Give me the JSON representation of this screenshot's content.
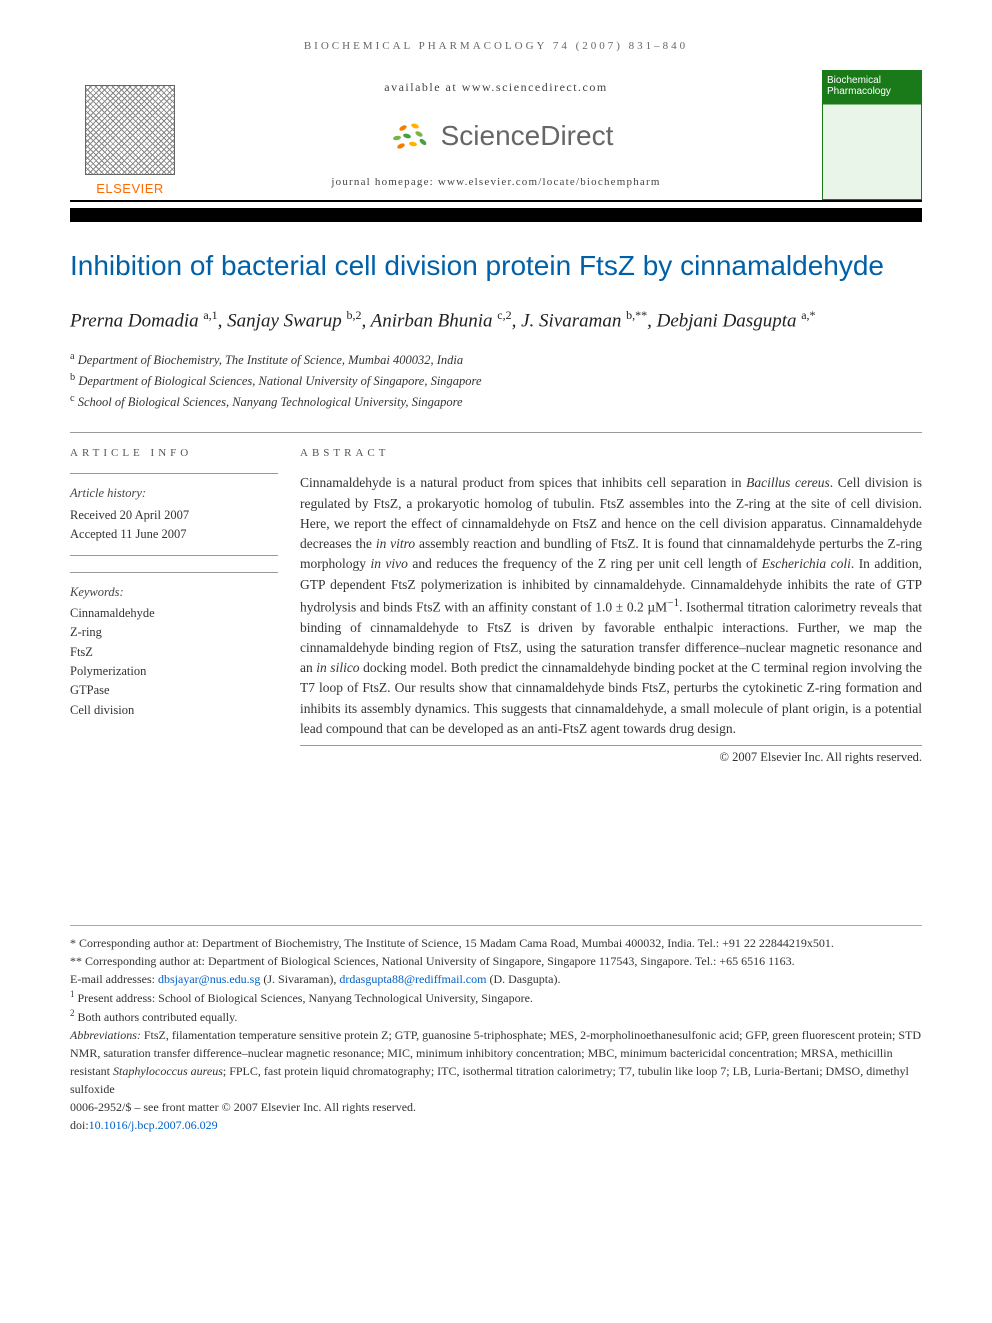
{
  "running_head": "BIOCHEMICAL PHARMACOLOGY 74 (2007) 831–840",
  "masthead": {
    "publisher": "ELSEVIER",
    "available_at": "available at www.sciencedirect.com",
    "sd_name": "ScienceDirect",
    "journal_homepage": "journal homepage: www.elsevier.com/locate/biochempharm",
    "cover_title": "Biochemical Pharmacology",
    "sd_burst_colors": [
      "#f57c00",
      "#ffb300",
      "#7cb342",
      "#43a047"
    ]
  },
  "article": {
    "title": "Inhibition of bacterial cell division protein FtsZ by cinnamaldehyde",
    "title_color": "#0060a8",
    "authors_html": "Prerna Domadia <sup>a,1</sup>, Sanjay Swarup <sup>b,2</sup>, Anirban Bhunia <sup>c,2</sup>, J. Sivaraman <sup>b,**</sup>, Debjani Dasgupta <sup>a,*</sup>",
    "affiliations": [
      {
        "sup": "a",
        "text": "Department of Biochemistry, The Institute of Science, Mumbai 400032, India"
      },
      {
        "sup": "b",
        "text": "Department of Biological Sciences, National University of Singapore, Singapore"
      },
      {
        "sup": "c",
        "text": "School of Biological Sciences, Nanyang Technological University, Singapore"
      }
    ]
  },
  "info": {
    "heading": "ARTICLE INFO",
    "history_label": "Article history:",
    "received": "Received 20 April 2007",
    "accepted": "Accepted 11 June 2007",
    "keywords_label": "Keywords:",
    "keywords": [
      "Cinnamaldehyde",
      "Z-ring",
      "FtsZ",
      "Polymerization",
      "GTPase",
      "Cell division"
    ]
  },
  "abstract": {
    "heading": "ABSTRACT",
    "body_html": "Cinnamaldehyde is a natural product from spices that inhibits cell separation in <span class=\"ital\">Bacillus cereus</span>. Cell division is regulated by FtsZ, a prokaryotic homolog of tubulin. FtsZ assembles into the Z-ring at the site of cell division. Here, we report the effect of cinnamaldehyde on FtsZ and hence on the cell division apparatus. Cinnamaldehyde decreases the <span class=\"ital\">in vitro</span> assembly reaction and bundling of FtsZ. It is found that cinnamaldehyde perturbs the Z-ring morphology <span class=\"ital\">in vivo</span> and reduces the frequency of the Z ring per unit cell length of <span class=\"ital\">Escherichia coli</span>. In addition, GTP dependent FtsZ polymerization is inhibited by cinnamaldehyde. Cinnamaldehyde inhibits the rate of GTP hydrolysis and binds FtsZ with an affinity constant of 1.0 ± 0.2 µM<sup>−1</sup>. Isothermal titration calorimetry reveals that binding of cinnamaldehyde to FtsZ is driven by favorable enthalpic interactions. Further, we map the cinnamaldehyde binding region of FtsZ, using the saturation transfer difference–nuclear magnetic resonance and an <span class=\"ital\">in silico</span> docking model. Both predict the cinnamaldehyde binding pocket at the C terminal region involving the T7 loop of FtsZ. Our results show that cinnamaldehyde binds FtsZ, perturbs the cytokinetic Z-ring formation and inhibits its assembly dynamics. This suggests that cinnamaldehyde, a small molecule of plant origin, is a potential lead compound that can be developed as an anti-FtsZ agent towards drug design.",
    "copyright": "© 2007 Elsevier Inc. All rights reserved."
  },
  "footer": {
    "corr1": "* Corresponding author at: Department of Biochemistry, The Institute of Science, 15 Madam Cama Road, Mumbai 400032, India. Tel.: +91 22 22844219x501.",
    "corr2": "** Corresponding author at: Department of Biological Sciences, National University of Singapore, Singapore 117543, Singapore. Tel.: +65 6516 1163.",
    "emails_label": "E-mail addresses: ",
    "email1": "dbsjayar@nus.edu.sg",
    "email1_who": " (J. Sivaraman), ",
    "email2": "drdasgupta88@rediffmail.com",
    "email2_who": " (D. Dasgupta).",
    "note1": "Present address: School of Biological Sciences, Nanyang Technological University, Singapore.",
    "note2": "Both authors contributed equally.",
    "abbrev_label": "Abbreviations:  ",
    "abbrev": "FtsZ, filamentation temperature sensitive protein Z; GTP, guanosine 5-triphosphate; MES, 2-morpholinoethanesulfonic acid; GFP, green fluorescent protein; STD NMR, saturation transfer difference–nuclear magnetic resonance; MIC, minimum inhibitory concentration; MBC, minimum bactericidal concentration; MRSA, methicillin resistant Staphylococcus aureus; FPLC, fast protein liquid chromatography; ITC, isothermal titration calorimetry; T7, tubulin like loop 7; LB, Luria-Bertani; DMSO, dimethyl sulfoxide",
    "issn": "0006-2952/$ – see front matter © 2007 Elsevier Inc. All rights reserved.",
    "doi_label": "doi:",
    "doi": "10.1016/j.bcp.2007.06.029"
  }
}
